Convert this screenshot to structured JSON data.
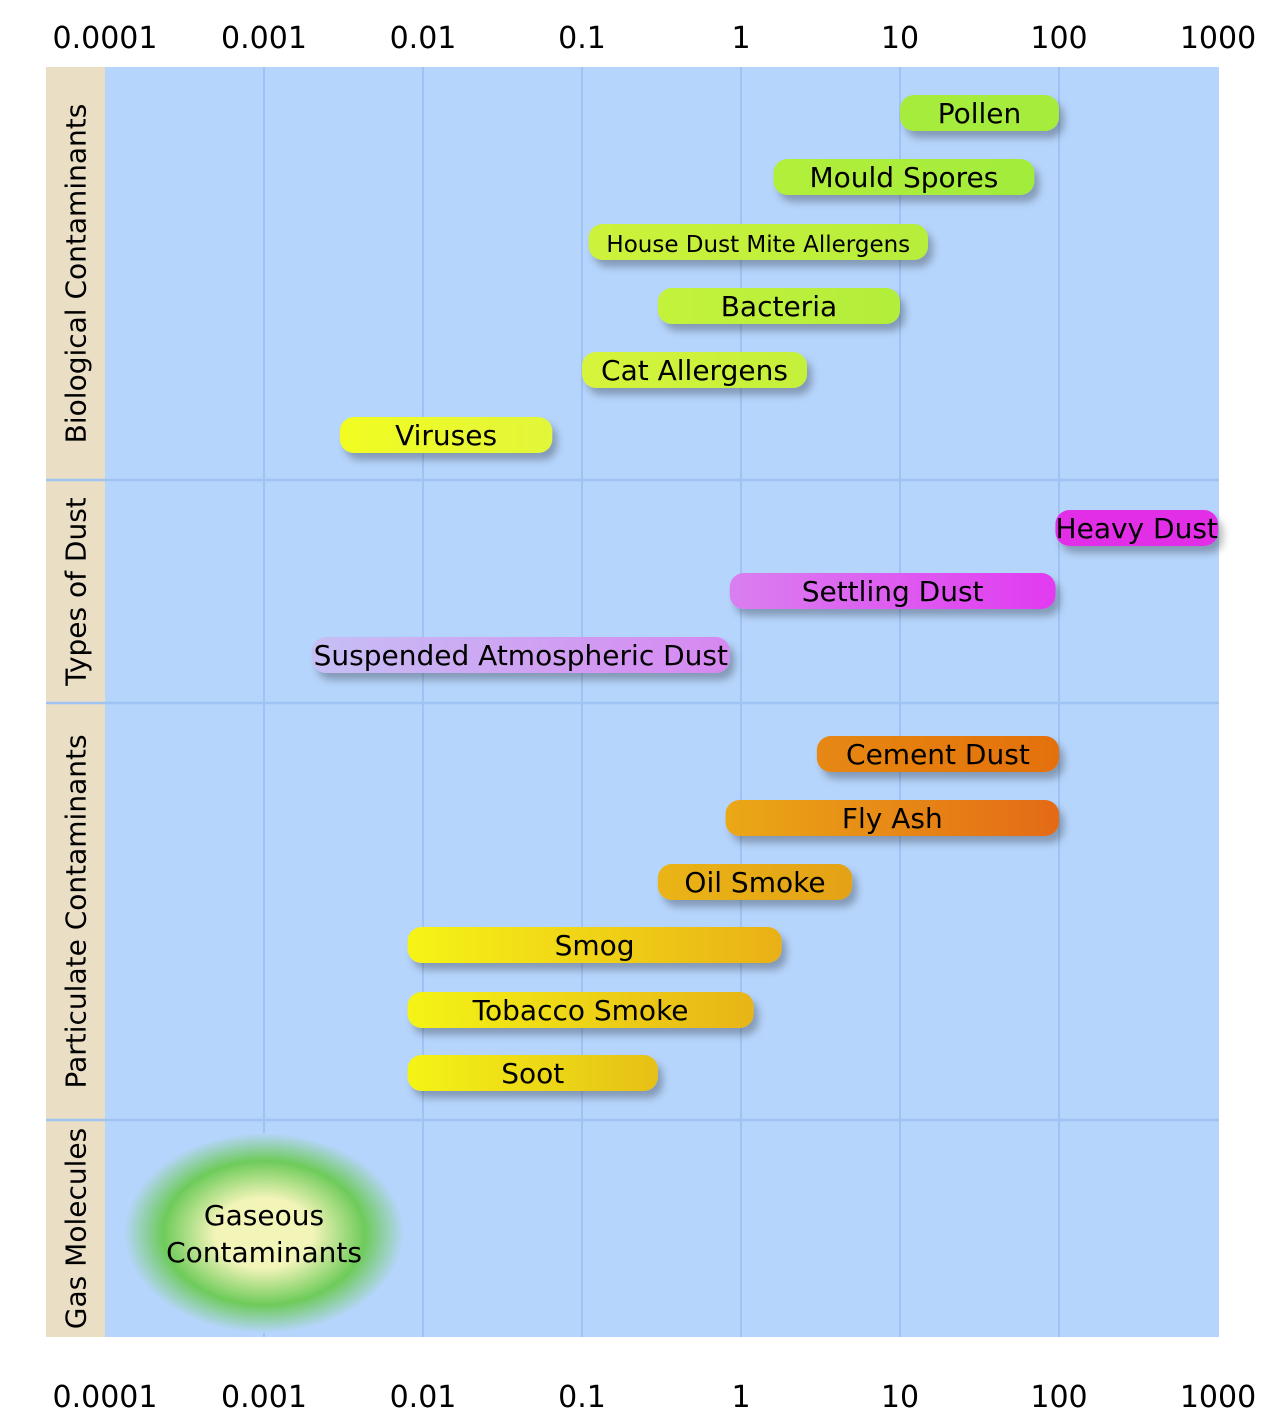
{
  "chart_data": {
    "type": "bar",
    "orientation": "horizontal",
    "x_scale": "log",
    "xlim": [
      0.0001,
      1000
    ],
    "x_ticks": [
      "0.0001",
      "0.001",
      "0.01",
      "0.1",
      "1",
      "10",
      "100",
      "1000"
    ],
    "grid": true,
    "colors": {
      "plot_bg": "#b6d5fc",
      "grid": "#9fc3f3",
      "category_bg": "#eadfc4"
    },
    "categories": [
      {
        "name": "Biological Contaminants",
        "items": [
          {
            "label": "Pollen",
            "x_min": 10,
            "x_max": 100,
            "colors": [
              "#a6ec3c",
              "#a6ec3c"
            ]
          },
          {
            "label": "Mould Spores",
            "x_min": 1.6,
            "x_max": 70,
            "colors": [
              "#b2ef3a",
              "#a2ec3a"
            ]
          },
          {
            "label": "House Dust Mite Allergens",
            "x_min": 0.11,
            "x_max": 15,
            "colors": [
              "#cdf23b",
              "#b6ee3a"
            ],
            "small": true
          },
          {
            "label": "Bacteria",
            "x_min": 0.3,
            "x_max": 10,
            "colors": [
              "#c4f23a",
              "#b2ee3a"
            ]
          },
          {
            "label": "Cat Allergens",
            "x_min": 0.1,
            "x_max": 2.6,
            "colors": [
              "#d6f43a",
              "#c4f03a"
            ]
          },
          {
            "label": "Viruses",
            "x_min": 0.003,
            "x_max": 0.065,
            "colors": [
              "#f2fc22",
              "#e2f63a"
            ]
          }
        ]
      },
      {
        "name": "Types of Dust",
        "items": [
          {
            "label": "Heavy Dust",
            "x_min": 95,
            "x_max": 1000,
            "colors": [
              "#e22fe6",
              "#e22fe6"
            ]
          },
          {
            "label": "Settling Dust",
            "x_min": 0.85,
            "x_max": 95,
            "colors": [
              "#d97ff0",
              "#e23af0"
            ]
          },
          {
            "label": "Suspended Atmospheric Dust",
            "x_min": 0.002,
            "x_max": 0.85,
            "colors": [
              "#c6bff4",
              "#d787f1"
            ]
          }
        ]
      },
      {
        "name": "Particulate Contaminants",
        "items": [
          {
            "label": "Cement Dust",
            "x_min": 3,
            "x_max": 100,
            "colors": [
              "#e68812",
              "#e4700f"
            ]
          },
          {
            "label": "Fly Ash",
            "x_min": 0.8,
            "x_max": 100,
            "colors": [
              "#eaa814",
              "#e46a12"
            ]
          },
          {
            "label": "Oil Smoke",
            "x_min": 0.3,
            "x_max": 5,
            "colors": [
              "#eab414",
              "#e4a212"
            ]
          },
          {
            "label": "Smog",
            "x_min": 0.008,
            "x_max": 1.8,
            "colors": [
              "#f6f418",
              "#eab014"
            ]
          },
          {
            "label": "Tobacco Smoke",
            "x_min": 0.008,
            "x_max": 1.2,
            "colors": [
              "#f4f418",
              "#e8b414"
            ]
          },
          {
            "label": "Soot",
            "x_min": 0.008,
            "x_max": 0.3,
            "colors": [
              "#f4f418",
              "#e6c014"
            ]
          }
        ]
      },
      {
        "name": "Gas Molecules",
        "items": [
          {
            "label": "Gaseous Contaminants",
            "label_lines": [
              "Gaseous",
              "Contaminants"
            ],
            "shape": "cloud",
            "x_center": 0.001,
            "colors": [
              "#f2f4b8",
              "#6ecb5a",
              "#b6d5fc"
            ]
          }
        ]
      }
    ]
  }
}
